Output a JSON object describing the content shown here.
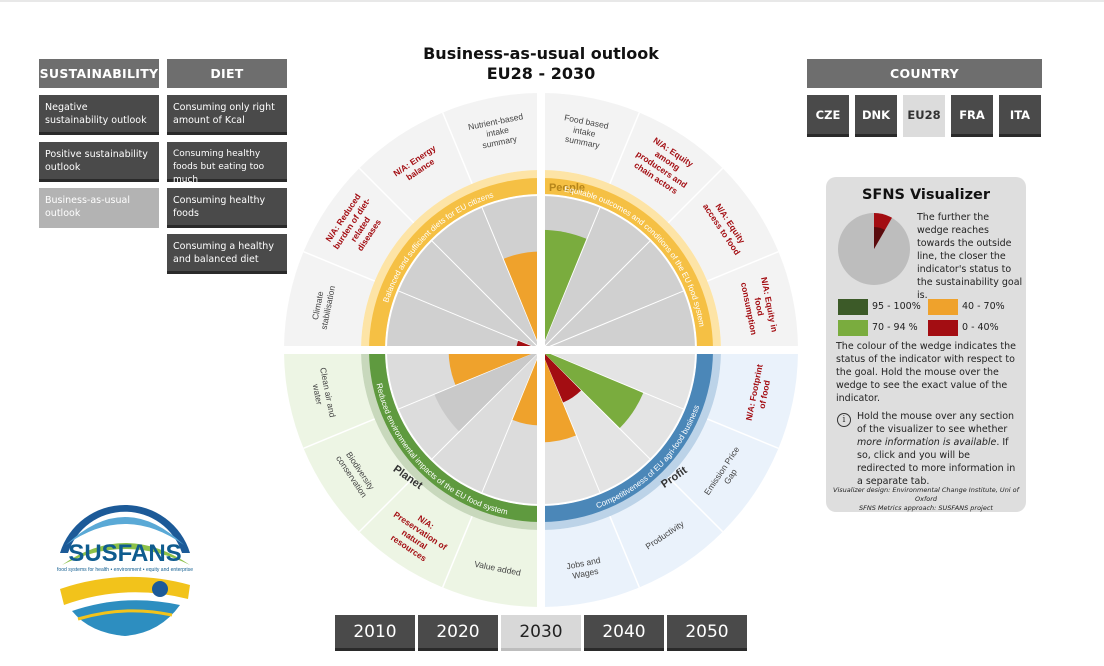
{
  "title": {
    "line1": "Business-as-usual outlook",
    "line2": "EU28 - 2030"
  },
  "menu": {
    "sustainability": {
      "header": "SUSTAINABILITY",
      "items": [
        "Negative sustainability outlook",
        "Positive sustainability outlook",
        "Business-as-usual outlook"
      ],
      "active_index": 2
    },
    "diet": {
      "header": "DIET",
      "items": [
        "Consuming only right amount of Kcal",
        "Consuming healthy foods but eating too much",
        "Consuming healthy foods",
        "Consuming a healthy and balanced diet"
      ]
    }
  },
  "country": {
    "header": "COUNTRY",
    "items": [
      "CZE",
      "DNK",
      "EU28",
      "FRA",
      "ITA"
    ],
    "active": "EU28"
  },
  "years": {
    "items": [
      "2010",
      "2020",
      "2030",
      "2040",
      "2050"
    ],
    "active": "2030"
  },
  "wheel": {
    "people_label": "People",
    "planet_label": "Planet",
    "profit_label": "Profit",
    "ring_labels": {
      "people_left": "Balanced and sufficient diets for EU citizens",
      "people_right": "Equitable outcomes and conditions of the EU food system",
      "planet": "Reduced environmental impacts of the EU food system",
      "profit": "Competitiveness of EU agri-food business"
    },
    "outer_labels": [
      {
        "text": [
          "Food based",
          "intake",
          "summary"
        ],
        "na": false
      },
      {
        "text": [
          "N/A: Equity",
          "among",
          "producers and",
          "chain actors"
        ],
        "na": true
      },
      {
        "text": [
          "N/A: Equity",
          "access to food"
        ],
        "na": true
      },
      {
        "text": [
          "N/A: Equity in",
          "food",
          "consumption"
        ],
        "na": true
      },
      {
        "text": [
          "N/A: Footprint",
          "of food"
        ],
        "na": true
      },
      {
        "text": [
          "Emission Price",
          "Gap"
        ],
        "na": false
      },
      {
        "text": [
          "Productivity"
        ],
        "na": false
      },
      {
        "text": [
          "Jobs and",
          "Wages"
        ],
        "na": false
      },
      {
        "text": [
          "Value added"
        ],
        "na": false
      },
      {
        "text": [
          "N/A:",
          "Preservation of",
          "natural",
          "resources"
        ],
        "na": true
      },
      {
        "text": [
          "Biodiversity",
          "conservation"
        ],
        "na": false
      },
      {
        "text": [
          "Clean air and",
          "water"
        ],
        "na": false
      },
      {
        "text": [
          "Climate",
          "stabilisation"
        ],
        "na": false
      },
      {
        "text": [
          "N/A: Reduced",
          "burden of diet-",
          "related",
          "diseases"
        ],
        "na": true
      },
      {
        "text": [
          "N/A: Energy",
          "balance"
        ],
        "na": true
      },
      {
        "text": [
          "Nutrient-based",
          "intake",
          "summary"
        ],
        "na": false
      }
    ]
  },
  "chart_data": {
    "type": "radial",
    "indicators": [
      {
        "name": "Food based intake summary",
        "pillar": "People",
        "value": 0.78,
        "color": "#7aac3e"
      },
      {
        "name": "N/A: Equity among producers and chain actors",
        "pillar": "People",
        "value": null
      },
      {
        "name": "N/A: Equity access to food",
        "pillar": "People",
        "value": null
      },
      {
        "name": "N/A: Equity in food consumption",
        "pillar": "People",
        "value": null
      },
      {
        "name": "N/A: Footprint of food",
        "pillar": "People",
        "value": null
      },
      {
        "name": "Emission Price Gap",
        "pillar": "Profit",
        "value": 0.72,
        "color": "#7aac3e"
      },
      {
        "name": "Productivity",
        "pillar": "Profit",
        "value": 0.37,
        "color": "#a30d12"
      },
      {
        "name": "Jobs and Wages",
        "pillar": "Profit",
        "value": 0.6,
        "color": "#efa22c"
      },
      {
        "name": "Value added",
        "pillar": "Profit",
        "value": 0.49,
        "color": "#efa22c"
      },
      {
        "name": "N/A: Preservation of natural resources",
        "pillar": "Planet",
        "value": null
      },
      {
        "name": "Biodiversity conservation",
        "pillar": "Planet",
        "value": 0.75,
        "color": "#c9c9c9"
      },
      {
        "name": "Clean air and water",
        "pillar": "Planet",
        "value": 0.6,
        "color": "#efa22c"
      },
      {
        "name": "Climate stabilisation",
        "pillar": "Planet",
        "value": 0.16,
        "color": "#a30d12"
      },
      {
        "name": "N/A: Reduced burden of diet-related diseases",
        "pillar": "People",
        "value": null
      },
      {
        "name": "N/A: Energy balance",
        "pillar": "People",
        "value": null
      },
      {
        "name": "Nutrient-based intake summary",
        "pillar": "People",
        "value": 0.64,
        "color": "#efa22c"
      }
    ]
  },
  "legend": {
    "title": "SFNS Visualizer",
    "description": "The further the wedge reaches towards the outside line, the closer the indicator's status to the sustainability goal is.",
    "items": [
      {
        "label": "95 - 100%",
        "color": "#3c5a28"
      },
      {
        "label": "40 - 70%",
        "color": "#efa22c"
      },
      {
        "label": "70 - 94 %",
        "color": "#7aac3e"
      },
      {
        "label": "0 - 40%",
        "color": "#a30d12"
      }
    ],
    "colour_note": "The colour of the wedge indicates the status of the indicator with respect to the goal. Hold the mouse over the wedge to see the exact value of the indicator.",
    "info_note": {
      "pre": "Hold the mouse over any section of the visualizer to see whether ",
      "em": "more information is available",
      "post": ". If so, click and you will be redirected to more information in a separate tab."
    },
    "credits": [
      "Visualizer design: Environmental Change Institute, Uni of Oxford",
      "SFNS Metrics approach: SUSFANS project"
    ]
  },
  "logo": {
    "name": "SUSFANS",
    "tagline": "food systems for health • environment • equity and enterprise"
  }
}
